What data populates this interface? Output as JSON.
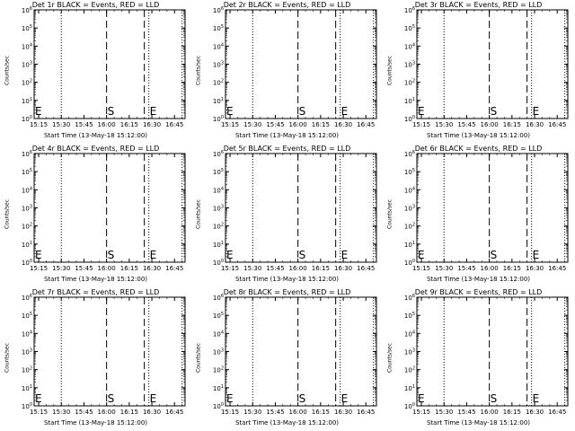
{
  "chart_data": [
    {
      "type": "line",
      "title": "Det 1r BLACK = Events, RED = LLD",
      "xlabel": "Start Time (13-May-18 15:12:00)",
      "ylabel": "Counts/sec",
      "x_ticks": [
        "15:15",
        "15:30",
        "15:45",
        "16:00",
        "16:15",
        "16:30",
        "16:45"
      ],
      "xlim": [
        "15:12",
        "16:52"
      ],
      "y_scale": "log",
      "ylim": [
        1,
        1000000
      ],
      "y_ticks": [
        "10^0",
        "10^1",
        "10^2",
        "10^3",
        "10^4",
        "10^5",
        "10^6"
      ],
      "markers": [
        {
          "label": "",
          "time": "15:12",
          "style": "dotted"
        },
        {
          "label": "",
          "time": "15:30",
          "style": "dotted"
        },
        {
          "label": "S",
          "time": "16:00",
          "style": "dashed"
        },
        {
          "label": "",
          "time": "16:25",
          "style": "dashed"
        },
        {
          "label": "E",
          "time": "16:28",
          "style": "dotted"
        },
        {
          "label": "",
          "time": "16:50",
          "style": "dotted"
        }
      ],
      "edge_label": "E",
      "series": []
    },
    {
      "type": "line",
      "title": "Det 2r BLACK = Events, RED = LLD",
      "xlabel": "Start Time (13-May-18 15:12:00)",
      "ylabel": "Counts/sec",
      "x_ticks": [
        "15:15",
        "15:30",
        "15:45",
        "16:00",
        "16:15",
        "16:30",
        "16:45"
      ],
      "xlim": [
        "15:12",
        "16:52"
      ],
      "y_scale": "log",
      "ylim": [
        1,
        1000000
      ],
      "y_ticks": [
        "10^0",
        "10^1",
        "10^2",
        "10^3",
        "10^4",
        "10^5",
        "10^6"
      ],
      "markers": [
        {
          "label": "",
          "time": "15:12",
          "style": "dotted"
        },
        {
          "label": "",
          "time": "15:30",
          "style": "dotted"
        },
        {
          "label": "S",
          "time": "16:00",
          "style": "dashed"
        },
        {
          "label": "",
          "time": "16:25",
          "style": "dashed"
        },
        {
          "label": "E",
          "time": "16:28",
          "style": "dotted"
        },
        {
          "label": "",
          "time": "16:50",
          "style": "dotted"
        }
      ],
      "edge_label": "E",
      "series": []
    },
    {
      "type": "line",
      "title": "Det 3r BLACK = Events, RED = LLD",
      "xlabel": "Start Time (13-May-18 15:12:00)",
      "ylabel": "Counts/sec",
      "x_ticks": [
        "15:15",
        "15:30",
        "15:45",
        "16:00",
        "16:15",
        "16:30",
        "16:45"
      ],
      "xlim": [
        "15:12",
        "16:52"
      ],
      "y_scale": "log",
      "ylim": [
        1,
        1000000
      ],
      "y_ticks": [
        "10^0",
        "10^1",
        "10^2",
        "10^3",
        "10^4",
        "10^5",
        "10^6"
      ],
      "markers": [
        {
          "label": "",
          "time": "15:12",
          "style": "dotted"
        },
        {
          "label": "",
          "time": "15:30",
          "style": "dotted"
        },
        {
          "label": "S",
          "time": "16:00",
          "style": "dashed"
        },
        {
          "label": "",
          "time": "16:25",
          "style": "dashed"
        },
        {
          "label": "E",
          "time": "16:28",
          "style": "dotted"
        },
        {
          "label": "",
          "time": "16:50",
          "style": "dotted"
        }
      ],
      "edge_label": "E",
      "series": []
    },
    {
      "type": "line",
      "title": "Det 4r BLACK = Events, RED = LLD",
      "xlabel": "Start Time (13-May-18 15:12:00)",
      "ylabel": "Counts/sec",
      "x_ticks": [
        "15:15",
        "15:30",
        "15:45",
        "16:00",
        "16:15",
        "16:30",
        "16:45"
      ],
      "xlim": [
        "15:12",
        "16:52"
      ],
      "y_scale": "log",
      "ylim": [
        1,
        1000000
      ],
      "y_ticks": [
        "10^0",
        "10^1",
        "10^2",
        "10^3",
        "10^4",
        "10^5",
        "10^6"
      ],
      "markers": [
        {
          "label": "",
          "time": "15:12",
          "style": "dotted"
        },
        {
          "label": "",
          "time": "15:30",
          "style": "dotted"
        },
        {
          "label": "S",
          "time": "16:00",
          "style": "dashed"
        },
        {
          "label": "",
          "time": "16:25",
          "style": "dashed"
        },
        {
          "label": "E",
          "time": "16:28",
          "style": "dotted"
        },
        {
          "label": "",
          "time": "16:50",
          "style": "dotted"
        }
      ],
      "edge_label": "E",
      "series": []
    },
    {
      "type": "line",
      "title": "Det 5r BLACK = Events, RED = LLD",
      "xlabel": "Start Time (13-May-18 15:12:00)",
      "ylabel": "Counts/sec",
      "x_ticks": [
        "15:15",
        "15:30",
        "15:45",
        "16:00",
        "16:15",
        "16:30",
        "16:45"
      ],
      "xlim": [
        "15:12",
        "16:52"
      ],
      "y_scale": "log",
      "ylim": [
        1,
        1000000
      ],
      "y_ticks": [
        "10^0",
        "10^1",
        "10^2",
        "10^3",
        "10^4",
        "10^5",
        "10^6"
      ],
      "markers": [
        {
          "label": "",
          "time": "15:12",
          "style": "dotted"
        },
        {
          "label": "",
          "time": "15:30",
          "style": "dotted"
        },
        {
          "label": "S",
          "time": "16:00",
          "style": "dashed"
        },
        {
          "label": "",
          "time": "16:25",
          "style": "dashed"
        },
        {
          "label": "E",
          "time": "16:28",
          "style": "dotted"
        },
        {
          "label": "",
          "time": "16:50",
          "style": "dotted"
        }
      ],
      "edge_label": "E",
      "series": []
    },
    {
      "type": "line",
      "title": "Det 6r BLACK = Events, RED = LLD",
      "xlabel": "Start Time (13-May-18 15:12:00)",
      "ylabel": "Counts/sec",
      "x_ticks": [
        "15:15",
        "15:30",
        "15:45",
        "16:00",
        "16:15",
        "16:30",
        "16:45"
      ],
      "xlim": [
        "15:12",
        "16:52"
      ],
      "y_scale": "log",
      "ylim": [
        1,
        1000000
      ],
      "y_ticks": [
        "10^0",
        "10^1",
        "10^2",
        "10^3",
        "10^4",
        "10^5",
        "10^6"
      ],
      "markers": [
        {
          "label": "",
          "time": "15:12",
          "style": "dotted"
        },
        {
          "label": "",
          "time": "15:30",
          "style": "dotted"
        },
        {
          "label": "S",
          "time": "16:00",
          "style": "dashed"
        },
        {
          "label": "",
          "time": "16:25",
          "style": "dashed"
        },
        {
          "label": "E",
          "time": "16:28",
          "style": "dotted"
        },
        {
          "label": "",
          "time": "16:50",
          "style": "dotted"
        }
      ],
      "edge_label": "E",
      "series": []
    },
    {
      "type": "line",
      "title": "Det 7r BLACK = Events, RED = LLD",
      "xlabel": "Start Time (13-May-18 15:12:00)",
      "ylabel": "Counts/sec",
      "x_ticks": [
        "15:15",
        "15:30",
        "15:45",
        "16:00",
        "16:15",
        "16:30",
        "16:45"
      ],
      "xlim": [
        "15:12",
        "16:52"
      ],
      "y_scale": "log",
      "ylim": [
        1,
        1000000
      ],
      "y_ticks": [
        "10^0",
        "10^1",
        "10^2",
        "10^3",
        "10^4",
        "10^5",
        "10^6"
      ],
      "markers": [
        {
          "label": "",
          "time": "15:12",
          "style": "dotted"
        },
        {
          "label": "",
          "time": "15:30",
          "style": "dotted"
        },
        {
          "label": "S",
          "time": "16:00",
          "style": "dashed"
        },
        {
          "label": "",
          "time": "16:25",
          "style": "dashed"
        },
        {
          "label": "E",
          "time": "16:28",
          "style": "dotted"
        },
        {
          "label": "",
          "time": "16:50",
          "style": "dotted"
        }
      ],
      "edge_label": "E",
      "series": []
    },
    {
      "type": "line",
      "title": "Det 8r BLACK = Events, RED = LLD",
      "xlabel": "Start Time (13-May-18 15:12:00)",
      "ylabel": "Counts/sec",
      "x_ticks": [
        "15:15",
        "15:30",
        "15:45",
        "16:00",
        "16:15",
        "16:30",
        "16:45"
      ],
      "xlim": [
        "15:12",
        "16:52"
      ],
      "y_scale": "log",
      "ylim": [
        1,
        1000000
      ],
      "y_ticks": [
        "10^0",
        "10^1",
        "10^2",
        "10^3",
        "10^4",
        "10^5",
        "10^6"
      ],
      "markers": [
        {
          "label": "",
          "time": "15:12",
          "style": "dotted"
        },
        {
          "label": "",
          "time": "15:30",
          "style": "dotted"
        },
        {
          "label": "S",
          "time": "16:00",
          "style": "dashed"
        },
        {
          "label": "",
          "time": "16:25",
          "style": "dashed"
        },
        {
          "label": "E",
          "time": "16:28",
          "style": "dotted"
        },
        {
          "label": "",
          "time": "16:50",
          "style": "dotted"
        }
      ],
      "edge_label": "E",
      "series": []
    },
    {
      "type": "line",
      "title": "Det 9r BLACK = Events, RED = LLD",
      "xlabel": "Start Time (13-May-18 15:12:00)",
      "ylabel": "Counts/sec",
      "x_ticks": [
        "15:15",
        "15:30",
        "15:45",
        "16:00",
        "16:15",
        "16:30",
        "16:45"
      ],
      "xlim": [
        "15:12",
        "16:52"
      ],
      "y_scale": "log",
      "ylim": [
        1,
        1000000
      ],
      "y_ticks": [
        "10^0",
        "10^1",
        "10^2",
        "10^3",
        "10^4",
        "10^5",
        "10^6"
      ],
      "markers": [
        {
          "label": "",
          "time": "15:12",
          "style": "dotted"
        },
        {
          "label": "",
          "time": "15:30",
          "style": "dotted"
        },
        {
          "label": "S",
          "time": "16:00",
          "style": "dashed"
        },
        {
          "label": "",
          "time": "16:25",
          "style": "dashed"
        },
        {
          "label": "E",
          "time": "16:28",
          "style": "dotted"
        },
        {
          "label": "",
          "time": "16:50",
          "style": "dotted"
        }
      ],
      "edge_label": "E",
      "series": []
    }
  ]
}
